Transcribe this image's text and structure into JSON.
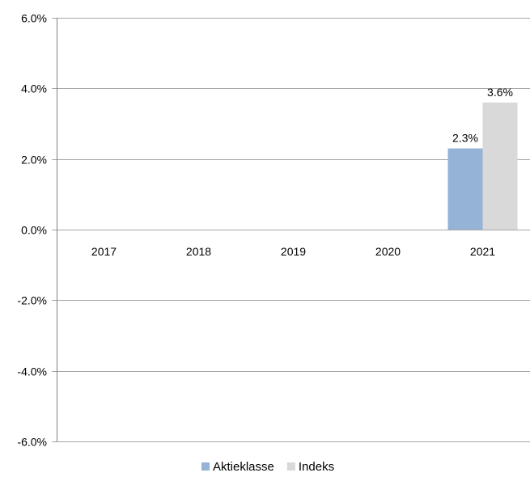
{
  "chart_data": {
    "type": "bar",
    "categories": [
      "2017",
      "2018",
      "2019",
      "2020",
      "2021"
    ],
    "series": [
      {
        "name": "Aktieklasse",
        "values": [
          null,
          null,
          null,
          null,
          2.3
        ],
        "labels": [
          null,
          null,
          null,
          null,
          "2.3%"
        ],
        "color": "#95b3d7"
      },
      {
        "name": "Indeks",
        "values": [
          null,
          null,
          null,
          null,
          3.6
        ],
        "labels": [
          null,
          null,
          null,
          null,
          "3.6%"
        ],
        "color": "#d9d9d9"
      }
    ],
    "ylim": [
      -6.0,
      6.0
    ],
    "yticks": [
      6.0,
      4.0,
      2.0,
      0.0,
      -2.0,
      -4.0,
      -6.0
    ],
    "ytick_labels": [
      "6.0%",
      "4.0%",
      "2.0%",
      "0.0%",
      "-2.0%",
      "-4.0%",
      "-6.0%"
    ],
    "grid": true,
    "legend_position": "bottom",
    "title": "",
    "xlabel": "",
    "ylabel": ""
  },
  "colors": {
    "gridline": "#a6a6a6",
    "axis": "#808080"
  }
}
